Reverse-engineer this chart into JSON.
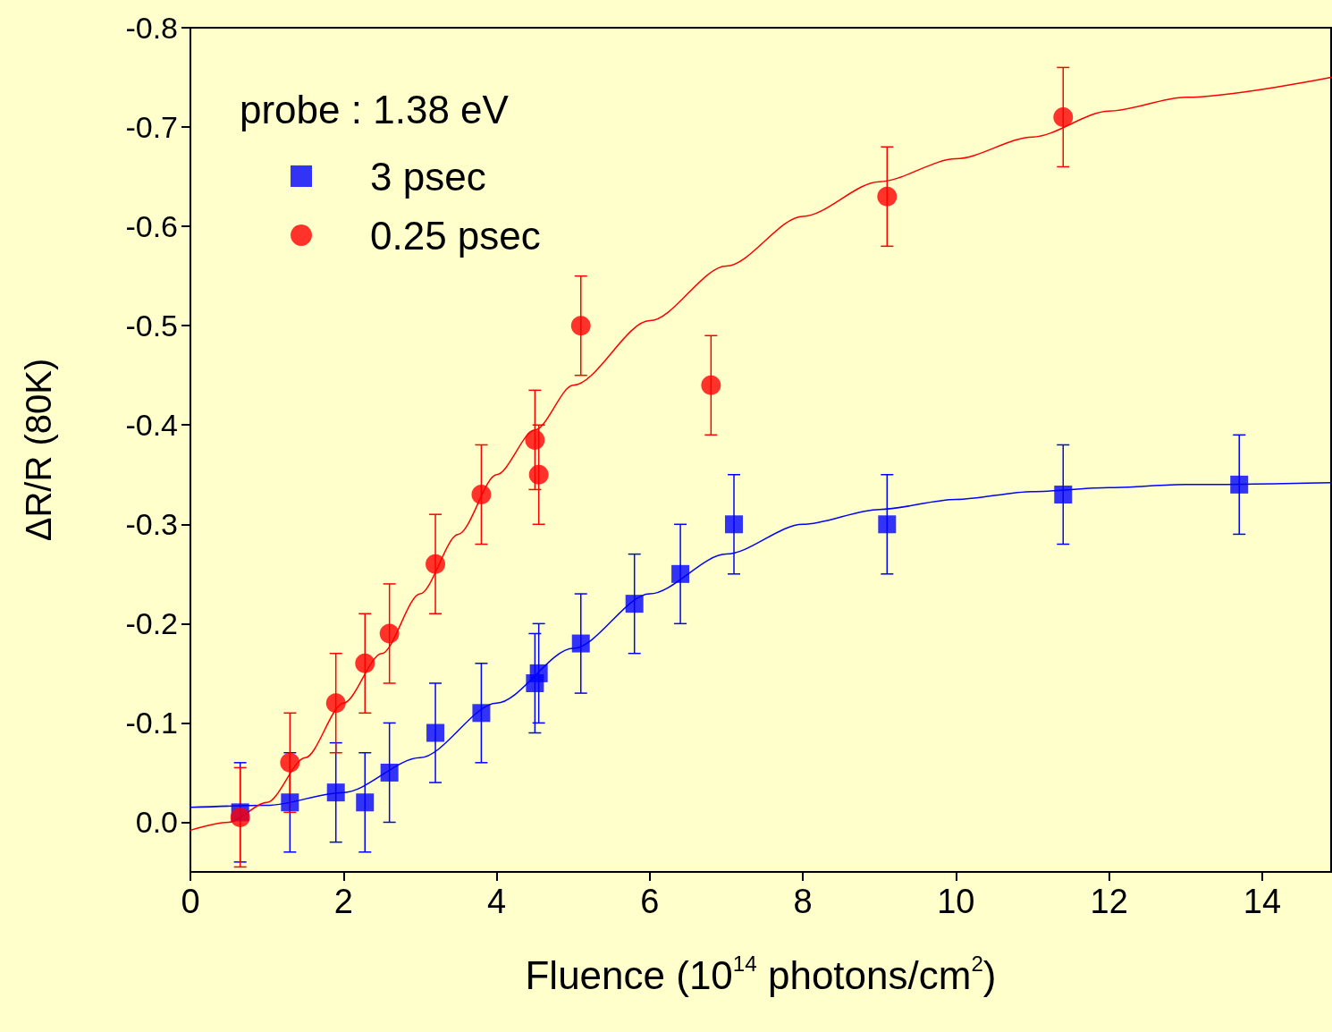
{
  "chart_data": {
    "type": "scatter",
    "xlabel": "Fluence (10$^{14}$ photons/cm$^{2}$)",
    "ylabel": "ΔR/R (80K)",
    "legend_title": "probe : 1.38 eV",
    "legend": "top left",
    "grid": false,
    "xlim": [
      0,
      14.9
    ],
    "xticks": [
      0,
      2,
      4,
      6,
      8,
      10,
      12,
      14
    ],
    "ylim": [
      0.05,
      -0.8
    ],
    "yticks": [
      {
        "value": 0,
        "label": "0.0"
      },
      -0.1,
      -0.2,
      -0.3,
      -0.4,
      -0.5,
      -0.6,
      -0.7,
      -0.8
    ],
    "series": [
      {
        "name": "3 psec",
        "marker": "square",
        "color": "#0000ff",
        "x": [
          0.65,
          1.3,
          1.9,
          2.28,
          2.6,
          3.2,
          3.8,
          4.5,
          4.55,
          5.1,
          5.8,
          6.4,
          7.1,
          9.1,
          11.4,
          13.7
        ],
        "values": [
          -0.01,
          -0.02,
          -0.03,
          -0.02,
          -0.05,
          -0.09,
          -0.11,
          -0.14,
          -0.15,
          -0.18,
          -0.22,
          -0.25,
          -0.3,
          -0.3,
          -0.33,
          -0.34
        ],
        "errors": [
          0.05,
          0.05,
          0.05,
          0.05,
          0.05,
          0.05,
          0.05,
          0.05,
          0.05,
          0.05,
          0.05,
          0.05,
          0.05,
          0.05,
          0.05,
          0.05
        ]
      },
      {
        "name": "0.25 psec",
        "marker": "circle",
        "color": "#ff0000",
        "x": [
          0.65,
          1.3,
          1.9,
          2.28,
          2.6,
          3.2,
          3.8,
          4.5,
          4.55,
          5.1,
          6.8,
          9.1,
          11.4
        ],
        "values": [
          -0.005,
          -0.06,
          -0.12,
          -0.16,
          -0.19,
          -0.26,
          -0.33,
          -0.385,
          -0.35,
          -0.5,
          -0.44,
          -0.63,
          -0.71
        ],
        "errors": [
          0.05,
          0.05,
          0.05,
          0.05,
          0.05,
          0.05,
          0.05,
          0.05,
          0.05,
          0.05,
          0.05,
          0.05,
          0.05
        ]
      },
      {
        "type": "line",
        "marker": "none",
        "color": "#0000ff",
        "x": [
          0,
          1,
          2,
          3,
          4,
          5,
          6,
          7,
          8,
          9,
          10,
          11,
          12,
          13,
          14.9
        ],
        "values": [
          -0.015,
          -0.017,
          -0.03,
          -0.065,
          -0.12,
          -0.175,
          -0.23,
          -0.27,
          -0.3,
          -0.315,
          -0.325,
          -0.333,
          -0.337,
          -0.34,
          -0.342
        ]
      },
      {
        "type": "line",
        "marker": "none",
        "color": "#ff0000",
        "x": [
          0,
          0.5,
          1,
          1.5,
          2,
          2.5,
          3,
          3.5,
          4,
          4.5,
          5,
          6,
          7,
          8,
          9,
          10,
          11,
          12,
          13,
          14.9
        ],
        "values": [
          0.008,
          0,
          -0.02,
          -0.065,
          -0.12,
          -0.17,
          -0.23,
          -0.29,
          -0.35,
          -0.395,
          -0.44,
          -0.505,
          -0.56,
          -0.61,
          -0.645,
          -0.668,
          -0.69,
          -0.716,
          -0.73,
          -0.75
        ]
      }
    ]
  }
}
